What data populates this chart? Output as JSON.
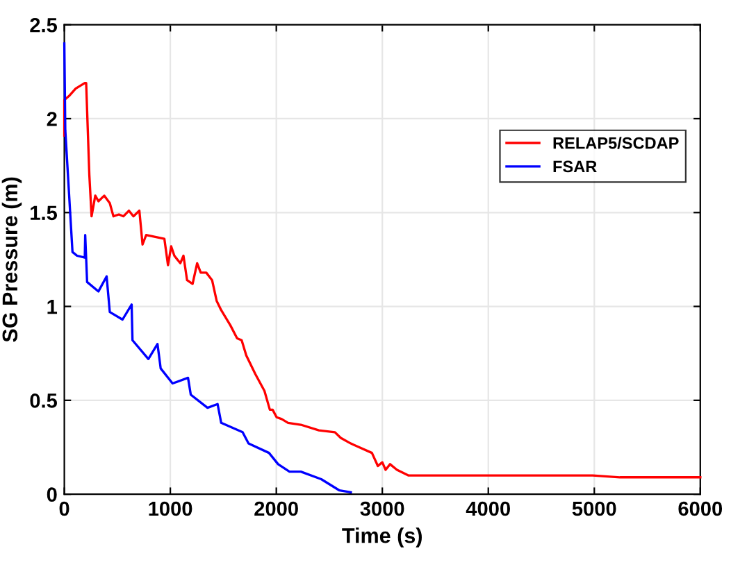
{
  "chart_data": {
    "type": "line",
    "xlabel": "Time (s)",
    "ylabel": "SG Pressure (m)",
    "xlim": [
      0,
      6000
    ],
    "ylim": [
      0,
      2.5
    ],
    "xticks": [
      0,
      1000,
      2000,
      3000,
      4000,
      5000,
      6000
    ],
    "yticks": [
      0,
      0.5,
      1,
      1.5,
      2,
      2.5
    ],
    "grid": true,
    "legend": "right",
    "marker": "none",
    "line_style": "solid",
    "series": [
      {
        "name": "RELAP5/SCDAP",
        "color": "#ff0000",
        "x": [
          0,
          0,
          43,
          107,
          193,
          206,
          236,
          257,
          292,
          322,
          377,
          429,
          463,
          515,
          558,
          609,
          652,
          708,
          738,
          772,
          944,
          978,
          1008,
          1038,
          1094,
          1124,
          1158,
          1210,
          1253,
          1287,
          1339,
          1394,
          1437,
          1480,
          1566,
          1630,
          1673,
          1716,
          1802,
          1888,
          1939,
          1965,
          2003,
          2051,
          2111,
          2231,
          2402,
          2553,
          2608,
          2703,
          2902,
          2958,
          3000,
          3031,
          3073,
          3138,
          3245,
          4985,
          5242,
          5500,
          6000
        ],
        "values": [
          1.91,
          2.1,
          2.12,
          2.16,
          2.19,
          2.19,
          1.7,
          1.48,
          1.59,
          1.56,
          1.59,
          1.55,
          1.48,
          1.49,
          1.48,
          1.51,
          1.48,
          1.51,
          1.33,
          1.38,
          1.36,
          1.22,
          1.32,
          1.27,
          1.23,
          1.27,
          1.14,
          1.12,
          1.23,
          1.18,
          1.18,
          1.14,
          1.03,
          0.98,
          0.9,
          0.83,
          0.82,
          0.74,
          0.64,
          0.55,
          0.45,
          0.45,
          0.41,
          0.4,
          0.38,
          0.37,
          0.34,
          0.33,
          0.3,
          0.27,
          0.22,
          0.15,
          0.17,
          0.13,
          0.16,
          0.13,
          0.1,
          0.1,
          0.09,
          0.09,
          0.09
        ]
      },
      {
        "name": "FSAR",
        "color": "#0000ff",
        "x": [
          0,
          9,
          77,
          120,
          193,
          197,
          215,
          322,
          399,
          429,
          549,
          635,
          643,
          793,
          879,
          909,
          1021,
          1167,
          1193,
          1351,
          1446,
          1480,
          1682,
          1738,
          1931,
          2017,
          2124,
          2231,
          2424,
          2596,
          2703
        ],
        "values": [
          2.4,
          1.94,
          1.29,
          1.27,
          1.26,
          1.38,
          1.13,
          1.08,
          1.16,
          0.97,
          0.93,
          1.01,
          0.82,
          0.72,
          0.8,
          0.67,
          0.59,
          0.62,
          0.53,
          0.46,
          0.48,
          0.38,
          0.33,
          0.27,
          0.22,
          0.16,
          0.12,
          0.12,
          0.08,
          0.02,
          0.01
        ]
      }
    ]
  }
}
